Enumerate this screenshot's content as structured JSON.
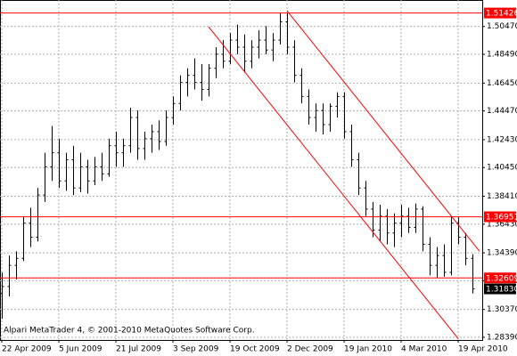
{
  "chart_data": {
    "type": "ohlc",
    "annotation": "Alpari MetaTrader 4, © 2001-2010 MetaQuotes Software Corp.",
    "categories": [
      "22 Apr 2009",
      null,
      null,
      null,
      null,
      null,
      null,
      null,
      "5 Jun 2009",
      null,
      null,
      null,
      null,
      null,
      null,
      null,
      "21 Jul 2009",
      null,
      null,
      null,
      null,
      null,
      null,
      null,
      "3 Sep 2009",
      null,
      null,
      null,
      null,
      null,
      null,
      null,
      "19 Oct 2009",
      null,
      null,
      null,
      null,
      null,
      null,
      null,
      "2 Dec 2009",
      null,
      null,
      null,
      null,
      null,
      null,
      null,
      "19 Jan 2010",
      null,
      null,
      null,
      null,
      null,
      null,
      null,
      "4 Mar 2010",
      null,
      null,
      null,
      null,
      null,
      null,
      null,
      "19 Apr 2010",
      null,
      null
    ],
    "open": [
      1.315,
      1.32,
      1.335,
      1.34,
      1.365,
      1.355,
      1.385,
      1.405,
      1.415,
      1.395,
      1.41,
      1.39,
      1.405,
      1.395,
      1.405,
      1.4,
      1.42,
      1.415,
      1.42,
      1.44,
      1.418,
      1.425,
      1.43,
      1.423,
      1.44,
      1.45,
      1.465,
      1.47,
      1.465,
      1.46,
      1.475,
      1.485,
      1.48,
      1.495,
      1.49,
      1.48,
      1.49,
      1.495,
      1.488,
      1.495,
      1.508,
      1.49,
      1.47,
      1.455,
      1.44,
      1.445,
      1.435,
      1.448,
      1.455,
      1.43,
      1.41,
      1.39,
      1.375,
      1.36,
      1.37,
      1.358,
      1.365,
      1.37,
      1.362,
      1.375,
      1.35,
      1.335,
      1.342,
      1.33,
      1.365,
      1.355,
      1.34
    ],
    "high": [
      1.33,
      1.342,
      1.345,
      1.37,
      1.376,
      1.39,
      1.415,
      1.434,
      1.425,
      1.415,
      1.42,
      1.415,
      1.41,
      1.412,
      1.415,
      1.425,
      1.43,
      1.425,
      1.447,
      1.445,
      1.43,
      1.435,
      1.438,
      1.445,
      1.455,
      1.47,
      1.475,
      1.482,
      1.478,
      1.478,
      1.49,
      1.495,
      1.5,
      1.506,
      1.499,
      1.495,
      1.502,
      1.505,
      1.5,
      1.514,
      1.5143,
      1.495,
      1.475,
      1.46,
      1.45,
      1.45,
      1.45,
      1.458,
      1.458,
      1.435,
      1.415,
      1.395,
      1.38,
      1.378,
      1.375,
      1.372,
      1.378,
      1.376,
      1.379,
      1.377,
      1.355,
      1.348,
      1.35,
      1.37,
      1.369,
      1.358,
      1.343
    ],
    "low": [
      1.297,
      1.313,
      1.325,
      1.338,
      1.348,
      1.352,
      1.38,
      1.395,
      1.39,
      1.388,
      1.385,
      1.387,
      1.386,
      1.392,
      1.395,
      1.398,
      1.405,
      1.405,
      1.415,
      1.41,
      1.41,
      1.415,
      1.417,
      1.42,
      1.435,
      1.445,
      1.455,
      1.46,
      1.452,
      1.455,
      1.468,
      1.475,
      1.478,
      1.485,
      1.472,
      1.475,
      1.482,
      1.485,
      1.48,
      1.492,
      1.485,
      1.465,
      1.45,
      1.435,
      1.43,
      1.428,
      1.43,
      1.44,
      1.425,
      1.405,
      1.385,
      1.37,
      1.355,
      1.352,
      1.35,
      1.348,
      1.355,
      1.358,
      1.358,
      1.345,
      1.328,
      1.326,
      1.327,
      1.328,
      1.35,
      1.335,
      1.315
    ],
    "close": [
      1.32,
      1.335,
      1.34,
      1.365,
      1.355,
      1.385,
      1.405,
      1.415,
      1.395,
      1.41,
      1.39,
      1.405,
      1.395,
      1.405,
      1.4,
      1.42,
      1.415,
      1.42,
      1.44,
      1.418,
      1.425,
      1.43,
      1.423,
      1.44,
      1.45,
      1.465,
      1.47,
      1.465,
      1.46,
      1.475,
      1.485,
      1.48,
      1.495,
      1.49,
      1.48,
      1.49,
      1.495,
      1.488,
      1.495,
      1.508,
      1.49,
      1.47,
      1.455,
      1.44,
      1.445,
      1.435,
      1.448,
      1.455,
      1.43,
      1.41,
      1.39,
      1.375,
      1.36,
      1.37,
      1.358,
      1.365,
      1.37,
      1.362,
      1.375,
      1.35,
      1.335,
      1.342,
      1.33,
      1.365,
      1.355,
      1.34,
      1.3183
    ],
    "color": "#000000",
    "ylim": [
      1.282,
      1.5235
    ],
    "yticks": [
      {
        "value": 1.5047,
        "label": "1.50470"
      },
      {
        "value": 1.4849,
        "label": "1.48490"
      },
      {
        "value": 1.4645,
        "label": "1.46450"
      },
      {
        "value": 1.4447,
        "label": "1.44470"
      },
      {
        "value": 1.4243,
        "label": "1.42430"
      },
      {
        "value": 1.4045,
        "label": "1.40450"
      },
      {
        "value": 1.3841,
        "label": "1.38410"
      },
      {
        "value": 1.3643,
        "label": "1.36430"
      },
      {
        "value": 1.3439,
        "label": "1.34390"
      },
      {
        "value": 1.3241,
        "label": "1.32410"
      },
      {
        "value": 1.3037,
        "label": "1.30370"
      },
      {
        "value": 1.2839,
        "label": "1.28390"
      }
    ],
    "grid": true,
    "levels": [
      1.51426,
      1.36951,
      1.32609
    ],
    "level_color": "#ff0000",
    "current_price": {
      "value": 1.3183,
      "label": "1.31830"
    },
    "trendlines": [
      {
        "x": [
          40,
          67
        ],
        "y": [
          1.5159,
          1.345
        ]
      },
      {
        "x": [
          29,
          64
        ],
        "y": [
          1.5045,
          1.283
        ]
      }
    ]
  }
}
